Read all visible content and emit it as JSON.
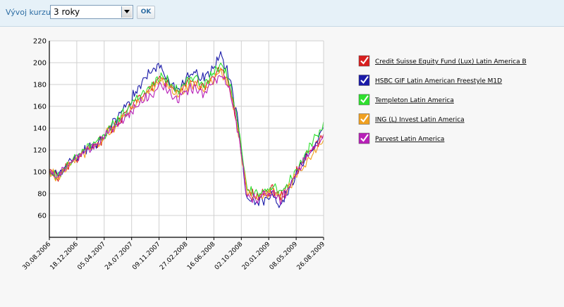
{
  "toolbar": {
    "period_label": "Vývoj kurzu:",
    "period_value": "3 roky",
    "ok_label": "OK"
  },
  "chart_data": {
    "type": "line",
    "title": "",
    "xlabel": "",
    "ylabel": "",
    "ylim": [
      40,
      220
    ],
    "yticks": [
      60,
      80,
      100,
      120,
      140,
      160,
      180,
      200,
      220
    ],
    "x_ticks": [
      "30.08.2006",
      "18.12.2006",
      "05.04.2007",
      "24.07.2007",
      "09.11.2007",
      "27.02.2008",
      "16.06.2008",
      "02.10.2008",
      "20.01.2009",
      "08.05.2009",
      "26.08.2009"
    ],
    "grid": true,
    "legend_position": "right",
    "series": [
      {
        "name": "Credit Suisse Equity Fund (Lux) Latin America B",
        "color": "#d81e1e",
        "values": [
          100,
          96,
          105,
          112,
          118,
          123,
          128,
          139,
          146,
          155,
          164,
          170,
          178,
          186,
          181,
          172,
          181,
          184,
          178,
          187,
          196,
          180,
          142,
          83,
          77,
          80,
          84,
          77,
          88,
          102,
          114,
          124,
          135
        ]
      },
      {
        "name": "HSBC GIF Latin American Freestyle M1D",
        "color": "#1a1aa8",
        "values": [
          100,
          97,
          106,
          113,
          119,
          124,
          130,
          141,
          149,
          160,
          172,
          184,
          192,
          197,
          184,
          173,
          186,
          190,
          186,
          193,
          207,
          187,
          146,
          76,
          73,
          75,
          77,
          69,
          84,
          101,
          113,
          126,
          140
        ]
      },
      {
        "name": "Templeton Latin America",
        "color": "#2ee02e",
        "values": [
          100,
          96,
          106,
          113,
          120,
          125,
          130,
          141,
          147,
          156,
          165,
          171,
          179,
          187,
          182,
          174,
          183,
          186,
          180,
          189,
          199,
          183,
          146,
          86,
          79,
          83,
          86,
          80,
          91,
          104,
          118,
          130,
          142
        ]
      },
      {
        "name": "ING (L) Invest Latin America",
        "color": "#f0a020",
        "values": [
          100,
          95,
          104,
          111,
          117,
          122,
          127,
          138,
          144,
          153,
          162,
          168,
          176,
          184,
          178,
          169,
          178,
          181,
          175,
          184,
          192,
          178,
          140,
          82,
          76,
          79,
          83,
          76,
          86,
          98,
          109,
          119,
          130
        ]
      },
      {
        "name": "Parvest Latin America",
        "color": "#b820b8",
        "values": [
          100,
          96,
          105,
          112,
          118,
          122,
          127,
          137,
          143,
          151,
          160,
          165,
          172,
          181,
          174,
          166,
          175,
          178,
          172,
          181,
          190,
          176,
          138,
          80,
          74,
          78,
          82,
          74,
          86,
          100,
          112,
          122,
          134
        ]
      }
    ]
  }
}
